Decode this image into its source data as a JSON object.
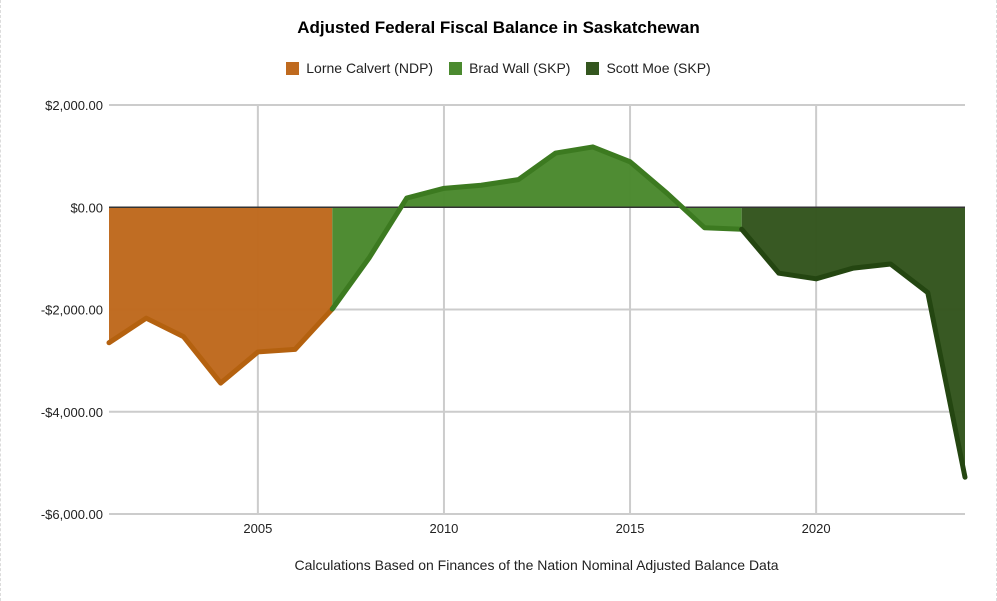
{
  "chart_data": {
    "type": "area",
    "title": "Adjusted Federal Fiscal Balance in Saskatchewan",
    "xlabel": "Calculations Based on Finances of the Nation Nominal Adjusted Balance Data",
    "ylabel": "",
    "xlim": [
      2001,
      2024
    ],
    "ylim": [
      -6000,
      2000
    ],
    "x_ticks": [
      2005,
      2010,
      2015,
      2020
    ],
    "y_ticks": [
      2000,
      0,
      -2000,
      -4000,
      -6000
    ],
    "y_tick_labels": [
      "$2,000.00",
      "$0.00",
      "-$2,000.00",
      "-$4,000.00",
      "-$6,000.00"
    ],
    "legend_position": "top",
    "grid": true,
    "series": [
      {
        "name": "Lorne Calvert (NDP)",
        "fill": "#bf6a1f",
        "stroke": "#b4610f",
        "points": [
          [
            2001,
            -2650
          ],
          [
            2002,
            -2170
          ],
          [
            2003,
            -2530
          ],
          [
            2004,
            -3440
          ],
          [
            2005,
            -2830
          ],
          [
            2006,
            -2780
          ],
          [
            2007,
            -1990
          ]
        ]
      },
      {
        "name": "Brad Wall (SKP)",
        "fill": "#4b8a2f",
        "stroke": "#3c7a20",
        "points": [
          [
            2007,
            -1990
          ],
          [
            2008,
            -980
          ],
          [
            2009,
            180
          ],
          [
            2010,
            370
          ],
          [
            2011,
            430
          ],
          [
            2012,
            540
          ],
          [
            2013,
            1060
          ],
          [
            2014,
            1180
          ],
          [
            2015,
            890
          ],
          [
            2016,
            270
          ],
          [
            2017,
            -400
          ],
          [
            2018,
            -430
          ]
        ]
      },
      {
        "name": "Scott Moe (SKP)",
        "fill": "#34561f",
        "stroke": "#244611",
        "points": [
          [
            2018,
            -430
          ],
          [
            2019,
            -1290
          ],
          [
            2020,
            -1400
          ],
          [
            2021,
            -1190
          ],
          [
            2022,
            -1110
          ],
          [
            2023,
            -1670
          ],
          [
            2024,
            -5280
          ]
        ]
      }
    ]
  }
}
